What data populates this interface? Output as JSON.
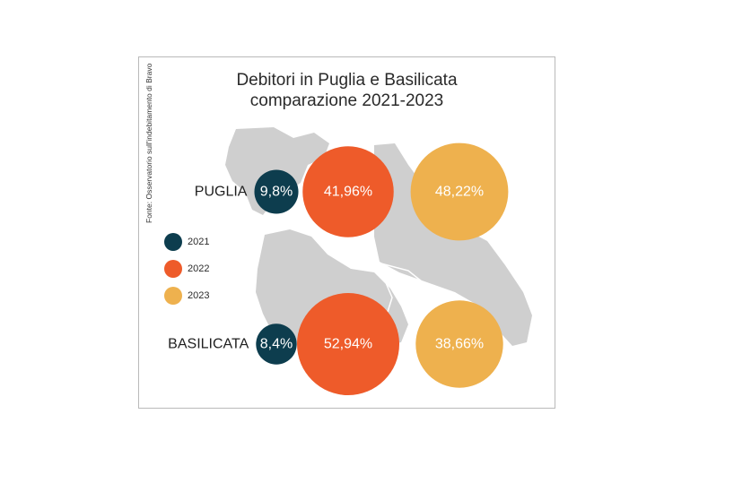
{
  "chart_data": {
    "type": "bubble",
    "title_lines": [
      "Debitori in Puglia e Basilicata",
      "comparazione 2021-2023"
    ],
    "series": [
      {
        "name": "2021",
        "color": "#0d3d4e"
      },
      {
        "name": "2022",
        "color": "#ee5b2a"
      },
      {
        "name": "2023",
        "color": "#eeb14e"
      }
    ],
    "regions": [
      {
        "name": "PUGLIA",
        "values": [
          9.8,
          41.96,
          48.22
        ],
        "labels": [
          "9,8%",
          "41,96%",
          "48,22%"
        ]
      },
      {
        "name": "BASILICATA",
        "values": [
          8.4,
          52.94,
          38.66
        ],
        "labels": [
          "8,4%",
          "52,94%",
          "38,66%"
        ]
      }
    ],
    "unit": "%",
    "source": "Fonte: Osservatorio sull'indebitamento di Bravo"
  },
  "colors": {
    "map": "#cfcfcf",
    "frame": "#b9b9b9",
    "background": "#ffffff"
  }
}
